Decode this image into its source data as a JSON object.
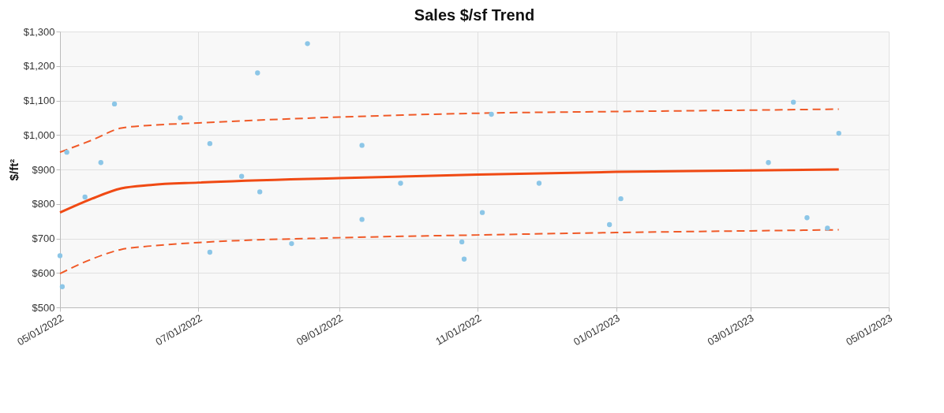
{
  "chart_data": {
    "type": "scatter",
    "title": "Sales $/sf Trend",
    "ylabel": "$/ft²",
    "grid": true,
    "xlim": [
      "2022-05-01",
      "2023-05-01"
    ],
    "xticks": [
      {
        "value": "2022-05-01",
        "label": "05/01/2022"
      },
      {
        "value": "2022-07-01",
        "label": "07/01/2022"
      },
      {
        "value": "2022-09-01",
        "label": "09/01/2022"
      },
      {
        "value": "2022-11-01",
        "label": "11/01/2022"
      },
      {
        "value": "2023-01-01",
        "label": "01/01/2023"
      },
      {
        "value": "2023-03-01",
        "label": "03/01/2023"
      },
      {
        "value": "2023-05-01",
        "label": "05/01/2023"
      }
    ],
    "ylim": [
      500,
      1300
    ],
    "yticks": [
      {
        "value": 500,
        "label": "$500"
      },
      {
        "value": 600,
        "label": "$600"
      },
      {
        "value": 700,
        "label": "$700"
      },
      {
        "value": 800,
        "label": "$800"
      },
      {
        "value": 900,
        "label": "$900"
      },
      {
        "value": 1000,
        "label": "$1,000"
      },
      {
        "value": 1100,
        "label": "$1,100"
      },
      {
        "value": 1200,
        "label": "$1,200"
      },
      {
        "value": 1300,
        "label": "$1,300"
      }
    ],
    "series": [
      {
        "marker": "circle",
        "color": "#8cc6e7",
        "x": [
          "2022-05-01",
          "2022-05-02",
          "2022-05-04",
          "2022-05-12",
          "2022-05-19",
          "2022-05-25",
          "2022-06-23",
          "2022-07-06",
          "2022-07-06",
          "2022-07-20",
          "2022-07-28",
          "2022-07-27",
          "2022-08-11",
          "2022-08-18",
          "2022-09-11",
          "2022-09-11",
          "2022-09-28",
          "2022-10-25",
          "2022-10-26",
          "2022-11-03",
          "2022-11-07",
          "2022-11-28",
          "2022-12-29",
          "2023-01-03",
          "2023-03-09",
          "2023-03-20",
          "2023-03-26",
          "2023-04-04",
          "2023-04-09"
        ],
        "values": [
          650,
          560,
          950,
          820,
          920,
          1090,
          1050,
          975,
          660,
          880,
          835,
          1180,
          685,
          1265,
          970,
          755,
          860,
          690,
          640,
          775,
          1060,
          860,
          740,
          815,
          920,
          1095,
          760,
          730,
          1005
        ]
      },
      {
        "type": "line",
        "line_style": "solid",
        "color": "#f04a14",
        "x": [
          "2022-05-01",
          "2022-05-15",
          "2022-05-28",
          "2022-06-10",
          "2022-07-01",
          "2022-09-01",
          "2022-11-01",
          "2023-01-01",
          "2023-03-01",
          "2023-04-09"
        ],
        "values": [
          775,
          815,
          845,
          855,
          862,
          875,
          885,
          893,
          897,
          900
        ]
      },
      {
        "type": "line",
        "line_style": "dashed",
        "color": "#f05a28",
        "x": [
          "2022-05-01",
          "2022-05-15",
          "2022-05-28",
          "2022-06-10",
          "2022-07-01",
          "2022-09-01",
          "2022-11-01",
          "2023-01-01",
          "2023-03-01",
          "2023-04-09"
        ],
        "values": [
          950,
          985,
          1020,
          1028,
          1035,
          1052,
          1063,
          1068,
          1072,
          1075
        ]
      },
      {
        "type": "line",
        "line_style": "dashed",
        "color": "#f05a28",
        "x": [
          "2022-05-01",
          "2022-05-15",
          "2022-05-28",
          "2022-06-10",
          "2022-07-01",
          "2022-09-01",
          "2022-11-01",
          "2023-01-01",
          "2023-03-01",
          "2023-04-09"
        ],
        "values": [
          598,
          640,
          668,
          678,
          688,
          702,
          710,
          717,
          722,
          725
        ]
      }
    ]
  }
}
